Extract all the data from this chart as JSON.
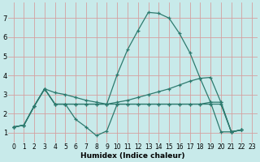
{
  "xlabel": "Humidex (Indice chaleur)",
  "background_color": "#c8eaea",
  "grid_color": "#d4a0a0",
  "line_color": "#2d7a6e",
  "xlim": [
    -0.5,
    23.5
  ],
  "ylim": [
    0.5,
    7.8
  ],
  "xticks": [
    0,
    1,
    2,
    3,
    4,
    5,
    6,
    7,
    8,
    9,
    10,
    11,
    12,
    13,
    14,
    15,
    16,
    17,
    18,
    19,
    20,
    21,
    22,
    23
  ],
  "yticks": [
    1,
    2,
    3,
    4,
    5,
    6,
    7
  ],
  "lines": [
    {
      "x": [
        0,
        1,
        2,
        3,
        4,
        5,
        6,
        7,
        8,
        9,
        10,
        11,
        12,
        13,
        14,
        15,
        16,
        17,
        18,
        19,
        20,
        21,
        22
      ],
      "y": [
        1.3,
        1.4,
        2.4,
        3.3,
        2.5,
        2.5,
        1.7,
        1.3,
        0.85,
        1.1,
        2.5,
        2.5,
        2.5,
        2.5,
        2.5,
        2.5,
        2.5,
        2.5,
        2.5,
        2.5,
        2.5,
        1.05,
        1.15
      ]
    },
    {
      "x": [
        0,
        1,
        2,
        3,
        4,
        5,
        6,
        7,
        8,
        9,
        10,
        11,
        12,
        13,
        14,
        15,
        16,
        17,
        18,
        19,
        20,
        21,
        22
      ],
      "y": [
        1.3,
        1.4,
        2.4,
        3.3,
        3.1,
        3.0,
        2.85,
        2.7,
        2.6,
        2.5,
        2.6,
        2.7,
        2.85,
        3.0,
        3.15,
        3.3,
        3.5,
        3.7,
        3.85,
        3.9,
        2.6,
        1.05,
        1.15
      ]
    },
    {
      "x": [
        0,
        1,
        2,
        3,
        4,
        5,
        6,
        7,
        8,
        9,
        10,
        11,
        12,
        13,
        14,
        15,
        16,
        17,
        18,
        19,
        20,
        21,
        22
      ],
      "y": [
        1.3,
        1.4,
        2.4,
        3.3,
        2.5,
        2.5,
        2.5,
        2.5,
        2.5,
        2.5,
        4.05,
        5.35,
        6.35,
        7.3,
        7.25,
        7.0,
        6.2,
        5.2,
        3.85,
        2.6,
        1.05,
        1.05,
        1.15
      ]
    },
    {
      "x": [
        0,
        1,
        2,
        3,
        4,
        5,
        6,
        7,
        8,
        9,
        10,
        11,
        12,
        13,
        14,
        15,
        16,
        17,
        18,
        19,
        20,
        21,
        22
      ],
      "y": [
        1.3,
        1.4,
        2.4,
        3.3,
        2.5,
        2.5,
        2.5,
        2.5,
        2.5,
        2.5,
        2.5,
        2.5,
        2.5,
        2.5,
        2.5,
        2.5,
        2.5,
        2.5,
        2.5,
        2.6,
        2.6,
        1.05,
        1.15
      ]
    }
  ]
}
